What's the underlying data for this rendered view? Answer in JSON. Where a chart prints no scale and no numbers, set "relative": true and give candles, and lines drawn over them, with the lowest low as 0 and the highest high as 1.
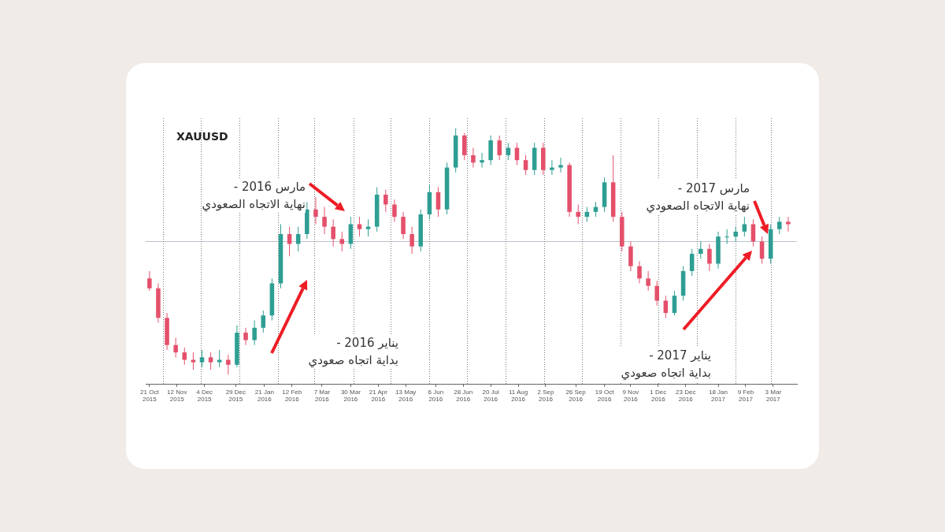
{
  "chart_data": {
    "type": "candlestick",
    "title": "XAUUSD",
    "relative": true,
    "x": [
      "2015-10-21",
      "2015-10-28",
      "2015-11-04",
      "2015-11-11",
      "2015-11-18",
      "2015-11-25",
      "2015-12-02",
      "2015-12-09",
      "2015-12-16",
      "2015-12-23",
      "2015-12-30",
      "2016-01-06",
      "2016-01-13",
      "2016-01-20",
      "2016-01-27",
      "2016-02-03",
      "2016-02-10",
      "2016-02-17",
      "2016-02-24",
      "2016-03-02",
      "2016-03-09",
      "2016-03-16",
      "2016-03-23",
      "2016-03-30",
      "2016-04-06",
      "2016-04-13",
      "2016-04-20",
      "2016-04-27",
      "2016-05-04",
      "2016-05-11",
      "2016-05-18",
      "2016-05-25",
      "2016-06-01",
      "2016-06-08",
      "2016-06-15",
      "2016-06-22",
      "2016-06-29",
      "2016-07-06",
      "2016-07-13",
      "2016-07-20",
      "2016-07-27",
      "2016-08-03",
      "2016-08-10",
      "2016-08-17",
      "2016-08-24",
      "2016-08-31",
      "2016-09-07",
      "2016-09-14",
      "2016-09-21",
      "2016-09-28",
      "2016-10-05",
      "2016-10-12",
      "2016-10-19",
      "2016-10-26",
      "2016-11-02",
      "2016-11-09",
      "2016-11-16",
      "2016-11-23",
      "2016-11-30",
      "2016-12-07",
      "2016-12-14",
      "2016-12-21",
      "2016-12-28",
      "2017-01-04",
      "2017-01-11",
      "2017-01-18",
      "2017-01-25",
      "2017-02-01",
      "2017-02-08",
      "2017-02-15",
      "2017-02-22",
      "2017-03-01",
      "2017-03-08",
      "2017-03-15"
    ],
    "ohlc": [
      [
        0.39,
        0.42,
        0.34,
        0.35
      ],
      [
        0.35,
        0.37,
        0.21,
        0.23
      ],
      [
        0.23,
        0.25,
        0.1,
        0.12
      ],
      [
        0.12,
        0.15,
        0.07,
        0.09
      ],
      [
        0.09,
        0.11,
        0.04,
        0.06
      ],
      [
        0.06,
        0.09,
        0.02,
        0.05
      ],
      [
        0.05,
        0.1,
        0.03,
        0.07
      ],
      [
        0.07,
        0.09,
        0.02,
        0.05
      ],
      [
        0.05,
        0.1,
        0.03,
        0.06
      ],
      [
        0.06,
        0.08,
        0,
        0.04
      ],
      [
        0.04,
        0.2,
        0.03,
        0.17
      ],
      [
        0.17,
        0.19,
        0.12,
        0.14
      ],
      [
        0.14,
        0.22,
        0.12,
        0.19
      ],
      [
        0.19,
        0.26,
        0.17,
        0.24
      ],
      [
        0.24,
        0.39,
        0.22,
        0.37
      ],
      [
        0.37,
        0.61,
        0.35,
        0.57
      ],
      [
        0.57,
        0.6,
        0.48,
        0.53
      ],
      [
        0.53,
        0.6,
        0.5,
        0.57
      ],
      [
        0.57,
        0.7,
        0.55,
        0.67
      ],
      [
        0.67,
        0.72,
        0.61,
        0.64
      ],
      [
        0.64,
        0.68,
        0.57,
        0.6
      ],
      [
        0.6,
        0.63,
        0.52,
        0.55
      ],
      [
        0.55,
        0.58,
        0.5,
        0.53
      ],
      [
        0.53,
        0.64,
        0.51,
        0.61
      ],
      [
        0.61,
        0.64,
        0.56,
        0.59
      ],
      [
        0.59,
        0.63,
        0.56,
        0.6
      ],
      [
        0.6,
        0.76,
        0.58,
        0.73
      ],
      [
        0.73,
        0.75,
        0.66,
        0.69
      ],
      [
        0.69,
        0.71,
        0.62,
        0.64
      ],
      [
        0.64,
        0.66,
        0.55,
        0.57
      ],
      [
        0.57,
        0.6,
        0.49,
        0.52
      ],
      [
        0.52,
        0.67,
        0.5,
        0.65
      ],
      [
        0.65,
        0.77,
        0.63,
        0.74
      ],
      [
        0.74,
        0.76,
        0.64,
        0.67
      ],
      [
        0.67,
        0.86,
        0.65,
        0.84
      ],
      [
        0.84,
        1,
        0.82,
        0.97
      ],
      [
        0.97,
        0.98,
        0.87,
        0.89
      ],
      [
        0.89,
        0.92,
        0.84,
        0.86
      ],
      [
        0.86,
        0.9,
        0.84,
        0.87
      ],
      [
        0.87,
        0.97,
        0.85,
        0.95
      ],
      [
        0.95,
        0.97,
        0.87,
        0.89
      ],
      [
        0.89,
        0.94,
        0.87,
        0.92
      ],
      [
        0.92,
        0.94,
        0.85,
        0.87
      ],
      [
        0.87,
        0.89,
        0.81,
        0.83
      ],
      [
        0.83,
        0.94,
        0.81,
        0.92
      ],
      [
        0.92,
        0.94,
        0.81,
        0.83
      ],
      [
        0.83,
        0.87,
        0.81,
        0.84
      ],
      [
        0.84,
        0.88,
        0.82,
        0.85
      ],
      [
        0.85,
        0.86,
        0.64,
        0.66
      ],
      [
        0.66,
        0.69,
        0.61,
        0.64
      ],
      [
        0.64,
        0.68,
        0.62,
        0.66
      ],
      [
        0.66,
        0.7,
        0.64,
        0.68
      ],
      [
        0.68,
        0.8,
        0.66,
        0.78
      ],
      [
        0.78,
        0.89,
        0.62,
        0.64
      ],
      [
        0.64,
        0.66,
        0.5,
        0.52
      ],
      [
        0.52,
        0.54,
        0.42,
        0.44
      ],
      [
        0.44,
        0.46,
        0.37,
        0.39
      ],
      [
        0.39,
        0.42,
        0.34,
        0.36
      ],
      [
        0.36,
        0.38,
        0.28,
        0.3
      ],
      [
        0.3,
        0.32,
        0.23,
        0.25
      ],
      [
        0.25,
        0.34,
        0.24,
        0.32
      ],
      [
        0.32,
        0.44,
        0.3,
        0.42
      ],
      [
        0.42,
        0.51,
        0.4,
        0.49
      ],
      [
        0.49,
        0.54,
        0.47,
        0.51
      ],
      [
        0.51,
        0.53,
        0.42,
        0.45
      ],
      [
        0.45,
        0.58,
        0.43,
        0.56
      ],
      [
        0.56,
        0.59,
        0.53,
        0.56
      ],
      [
        0.56,
        0.6,
        0.54,
        0.58
      ],
      [
        0.58,
        0.64,
        0.56,
        0.61
      ],
      [
        0.61,
        0.63,
        0.52,
        0.54
      ],
      [
        0.54,
        0.56,
        0.45,
        0.47
      ],
      [
        0.47,
        0.61,
        0.45,
        0.59
      ],
      [
        0.59,
        0.64,
        0.57,
        0.62
      ],
      [
        0.62,
        0.64,
        0.58,
        0.61
      ]
    ],
    "xlim": [
      "2015-10-18",
      "2017-03-22"
    ],
    "xticks": [
      {
        "value": "2015-10-21",
        "label": "21 Oct 2015"
      },
      {
        "value": "2015-11-12",
        "label": "12 Nov 2015"
      },
      {
        "value": "2015-12-04",
        "label": "4 Dec 2015"
      },
      {
        "value": "2015-12-29",
        "label": "29 Dec 2015"
      },
      {
        "value": "2016-01-21",
        "label": "21 Jan 2016"
      },
      {
        "value": "2016-02-12",
        "label": "12 Feb 2016"
      },
      {
        "value": "2016-03-07",
        "label": "7 Mar 2016"
      },
      {
        "value": "2016-03-30",
        "label": "30 Mar 2016"
      },
      {
        "value": "2016-04-21",
        "label": "21 Apr 2016"
      },
      {
        "value": "2016-05-13",
        "label": "13 May 2016"
      },
      {
        "value": "2016-06-06",
        "label": "6 Jun 2016"
      },
      {
        "value": "2016-06-28",
        "label": "28 Jun 2016"
      },
      {
        "value": "2016-07-20",
        "label": "20 Jul 2016"
      },
      {
        "value": "2016-08-11",
        "label": "11 Aug 2016"
      },
      {
        "value": "2016-09-02",
        "label": "2 Sep 2016"
      },
      {
        "value": "2016-09-26",
        "label": "26 Sep 2016"
      },
      {
        "value": "2016-10-19",
        "label": "19 Oct 2016"
      },
      {
        "value": "2016-11-09",
        "label": "9 Nov 2016"
      },
      {
        "value": "2016-12-01",
        "label": "1 Dec 2016"
      },
      {
        "value": "2016-12-23",
        "label": "23 Dec 2016"
      },
      {
        "value": "2017-01-18",
        "label": "18 Jan 2017"
      },
      {
        "value": "2017-02-09",
        "label": "9 Feb 2017"
      },
      {
        "value": "2017-03-03",
        "label": "3 Mar 2017"
      }
    ],
    "ref_lines": [
      {
        "axis": "y",
        "value": 0.54,
        "color": "#b9c2cc",
        "line_style": "solid"
      },
      {
        "axis": "x",
        "value": "2015-11-01",
        "color": "#777777",
        "line_style": "dotted"
      },
      {
        "axis": "x",
        "value": "2015-12-01",
        "color": "#777777",
        "line_style": "dotted"
      },
      {
        "axis": "x",
        "value": "2016-01-01",
        "color": "#777777",
        "line_style": "dotted"
      },
      {
        "axis": "x",
        "value": "2016-02-01",
        "color": "#777777",
        "line_style": "dotted"
      },
      {
        "axis": "x",
        "value": "2016-03-01",
        "color": "#777777",
        "line_style": "dotted"
      },
      {
        "axis": "x",
        "value": "2016-04-01",
        "color": "#777777",
        "line_style": "dotted"
      },
      {
        "axis": "x",
        "value": "2016-05-01",
        "color": "#777777",
        "line_style": "dotted"
      },
      {
        "axis": "x",
        "value": "2016-06-01",
        "color": "#777777",
        "line_style": "dotted"
      },
      {
        "axis": "x",
        "value": "2016-07-01",
        "color": "#777777",
        "line_style": "dotted"
      },
      {
        "axis": "x",
        "value": "2016-08-01",
        "color": "#777777",
        "line_style": "dotted"
      },
      {
        "axis": "x",
        "value": "2016-09-01",
        "color": "#777777",
        "line_style": "dotted"
      },
      {
        "axis": "x",
        "value": "2016-10-01",
        "color": "#777777",
        "line_style": "dotted"
      },
      {
        "axis": "x",
        "value": "2016-11-01",
        "color": "#777777",
        "line_style": "dotted"
      },
      {
        "axis": "x",
        "value": "2016-12-01",
        "color": "#777777",
        "line_style": "dotted"
      },
      {
        "axis": "x",
        "value": "2017-01-01",
        "color": "#777777",
        "line_style": "dotted"
      },
      {
        "axis": "x",
        "value": "2017-02-01",
        "color": "#777777",
        "line_style": "dotted"
      },
      {
        "axis": "x",
        "value": "2017-03-01",
        "color": "#777777",
        "line_style": "dotted"
      }
    ],
    "annotations": [
      "مارس 2016 -\nنهاية الاتجاه الصعودي",
      "يناير 2016 -\nبداية اتجاه صعودي",
      "مارس 2017 -\nنهاية الاتجاه الصعودي",
      "يناير 2017 -\nبداية اتجاه صعودي"
    ]
  }
}
